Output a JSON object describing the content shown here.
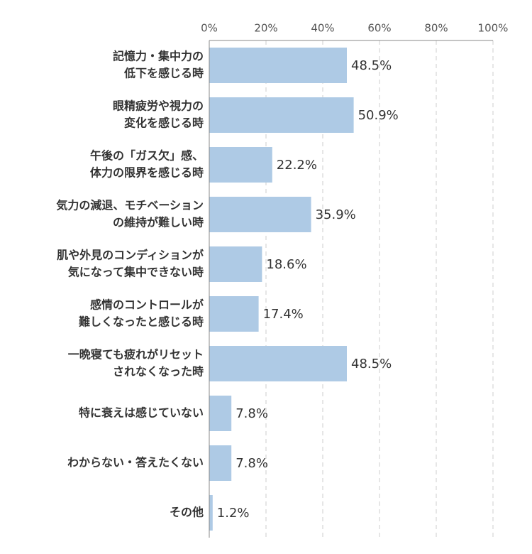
{
  "chart_data": {
    "type": "bar",
    "orientation": "horizontal",
    "categories": [
      [
        "記憶力・集中力の",
        "低下を感じる時"
      ],
      [
        "眼精疲労や視力の",
        "変化を感じる時"
      ],
      [
        "午後の「ガス欠」感、",
        "体力の限界を感じる時"
      ],
      [
        "気力の減退、モチベーション",
        "の維持が難しい時"
      ],
      [
        "肌や外見のコンディションが",
        "気になって集中できない時"
      ],
      [
        "感情のコントロールが",
        "難しくなったと感じる時"
      ],
      [
        "一晩寝ても疲れがリセット",
        "されなくなった時"
      ],
      [
        "特に衰えは感じていない"
      ],
      [
        "わからない・答えたくない"
      ],
      [
        "その他"
      ]
    ],
    "values": [
      48.5,
      50.9,
      22.2,
      35.9,
      18.6,
      17.4,
      48.5,
      7.8,
      7.8,
      1.2
    ],
    "value_labels": [
      "48.5%",
      "50.9%",
      "22.2%",
      "35.9%",
      "18.6%",
      "17.4%",
      "48.5%",
      "7.8%",
      "7.8%",
      "1.2%"
    ],
    "color": "#aecae5",
    "xlim": [
      0,
      100
    ],
    "xticks": [
      {
        "value": 0,
        "label": "0%"
      },
      {
        "value": 20,
        "label": "20%"
      },
      {
        "value": 40,
        "label": "40%"
      },
      {
        "value": 60,
        "label": "60%"
      },
      {
        "value": 80,
        "label": "80%"
      },
      {
        "value": 100,
        "label": "100%"
      }
    ],
    "grid": true
  }
}
